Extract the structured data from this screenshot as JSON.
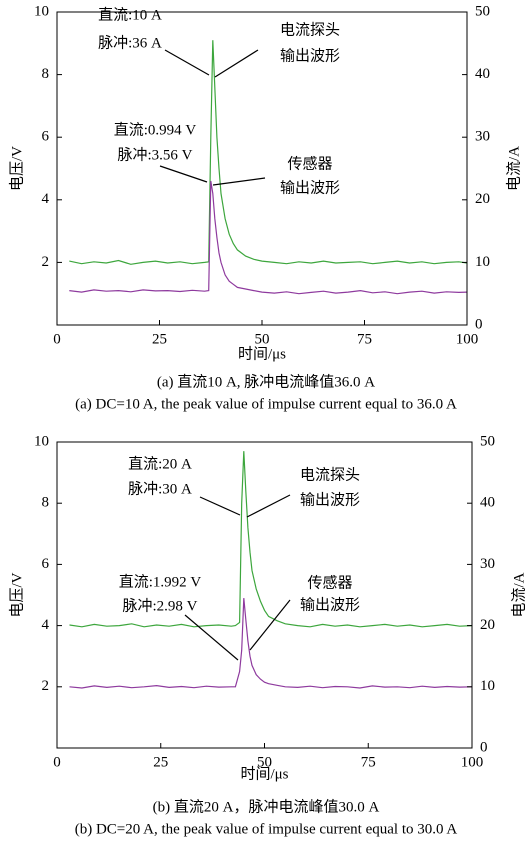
{
  "chart_data": [
    {
      "type": "line",
      "xlabel": "时间/μs",
      "ylabel": "电压/V",
      "y2label": "电流/A",
      "caption_zh": "(a) 直流10 A, 脉冲电流峰值36.0 A",
      "caption_en": "(a) DC=10 A, the peak value of impulse current equal to 36.0 A",
      "annotations": [
        {
          "lines": [
            "直流:10 A",
            "脉冲:36 A"
          ]
        },
        {
          "lines": [
            "电流探头",
            "输出波形"
          ]
        },
        {
          "lines": [
            "直流:0.994 V",
            "脉冲:3.56 V"
          ]
        },
        {
          "lines": [
            "传感器",
            "输出波形"
          ]
        }
      ],
      "xlim": [
        0,
        100
      ],
      "xticks": [
        0,
        25,
        50,
        75,
        100
      ],
      "ylim": [
        0,
        10
      ],
      "yticks": [
        2,
        4,
        6,
        8,
        10
      ],
      "y2lim": [
        0,
        50
      ],
      "y2ticks": [
        0,
        10,
        20,
        30,
        40,
        50
      ],
      "x": [
        3,
        6,
        9,
        12,
        15,
        18,
        21,
        24,
        27,
        30,
        33,
        36,
        37,
        37.5,
        38,
        38.5,
        39,
        39.5,
        40,
        41,
        42,
        43,
        44,
        46,
        48,
        50,
        53,
        56,
        59,
        62,
        65,
        68,
        71,
        74,
        77,
        80,
        83,
        86,
        89,
        92,
        95,
        98,
        100
      ],
      "series": [
        {
          "color": "#3da63d",
          "axis": "y2",
          "values": [
            10.2,
            9.8,
            10.1,
            9.9,
            10.3,
            9.7,
            10.0,
            10.2,
            9.9,
            10.1,
            9.8,
            10.0,
            10.1,
            30,
            45.5,
            38,
            30,
            25,
            21,
            17,
            14.5,
            13,
            12,
            11,
            10.5,
            10.2,
            10.0,
            9.8,
            10.1,
            9.9,
            10.2,
            9.9,
            10.0,
            10.1,
            9.8,
            10.0,
            10.2,
            9.9,
            10.1,
            9.8,
            10.0,
            10.1,
            9.9
          ]
        },
        {
          "color": "#8e3a9e",
          "values": [
            1.1,
            1.05,
            1.12,
            1.08,
            1.1,
            1.06,
            1.12,
            1.09,
            1.1,
            1.07,
            1.11,
            1.08,
            1.1,
            4.6,
            4.2,
            3.4,
            2.8,
            2.3,
            2.0,
            1.6,
            1.4,
            1.3,
            1.2,
            1.15,
            1.1,
            1.05,
            1.02,
            1.06,
            1.0,
            1.04,
            1.08,
            1.02,
            1.05,
            1.1,
            1.03,
            1.06,
            1.0,
            1.05,
            1.08,
            1.02,
            1.06,
            1.04,
            1.05
          ]
        }
      ]
    },
    {
      "type": "line",
      "xlabel": "时间/μs",
      "ylabel": "电压/V",
      "y2label": "电流/A",
      "caption_zh": "(b) 直流20 A，脉冲电流峰值30.0 A",
      "caption_en": "(b) DC=20 A, the peak value of impulse current equal to 30.0 A",
      "annotations": [
        {
          "lines": [
            "直流:20 A",
            "脉冲:30 A"
          ]
        },
        {
          "lines": [
            "电流探头",
            "输出波形"
          ]
        },
        {
          "lines": [
            "直流:1.992 V",
            "脉冲:2.98 V"
          ]
        },
        {
          "lines": [
            "传感器",
            "输出波形"
          ]
        }
      ],
      "xlim": [
        0,
        100
      ],
      "xticks": [
        0,
        25,
        50,
        75,
        100
      ],
      "ylim": [
        0,
        10
      ],
      "yticks": [
        2,
        4,
        6,
        8,
        10
      ],
      "y2lim": [
        0,
        50
      ],
      "y2ticks": [
        0,
        10,
        20,
        30,
        40,
        50
      ],
      "x": [
        3,
        6,
        9,
        12,
        15,
        18,
        21,
        24,
        27,
        30,
        33,
        36,
        39,
        42,
        43,
        44,
        44.5,
        45,
        45.5,
        46,
        46.5,
        47,
        48,
        49,
        50,
        51,
        53,
        55,
        58,
        61,
        64,
        67,
        70,
        73,
        76,
        79,
        82,
        85,
        88,
        91,
        94,
        97,
        100
      ],
      "series": [
        {
          "color": "#3da63d",
          "axis": "y2",
          "values": [
            20.1,
            19.8,
            20.2,
            19.9,
            20.0,
            20.3,
            19.8,
            20.1,
            19.9,
            20.2,
            19.8,
            20.0,
            20.1,
            19.9,
            20.0,
            20.5,
            40,
            48.5,
            42,
            36,
            32,
            29,
            26,
            24,
            22.5,
            21.5,
            20.8,
            20.3,
            20.0,
            19.8,
            20.2,
            19.9,
            20.1,
            19.8,
            20.0,
            20.2,
            19.9,
            20.1,
            19.8,
            20.0,
            20.2,
            19.9,
            20.0
          ]
        },
        {
          "color": "#8e3a9e",
          "values": [
            2.0,
            1.96,
            2.03,
            1.98,
            2.02,
            1.97,
            2.0,
            2.04,
            1.98,
            2.01,
            1.97,
            2.02,
            1.99,
            2.0,
            2.0,
            2.5,
            3.2,
            4.9,
            4.2,
            3.5,
            3.0,
            2.7,
            2.4,
            2.25,
            2.15,
            2.1,
            2.05,
            2.0,
            1.98,
            2.02,
            1.97,
            2.01,
            2.0,
            1.96,
            2.03,
            1.99,
            2.0,
            1.97,
            2.02,
            1.98,
            2.01,
            1.99,
            2.0
          ]
        }
      ]
    }
  ]
}
